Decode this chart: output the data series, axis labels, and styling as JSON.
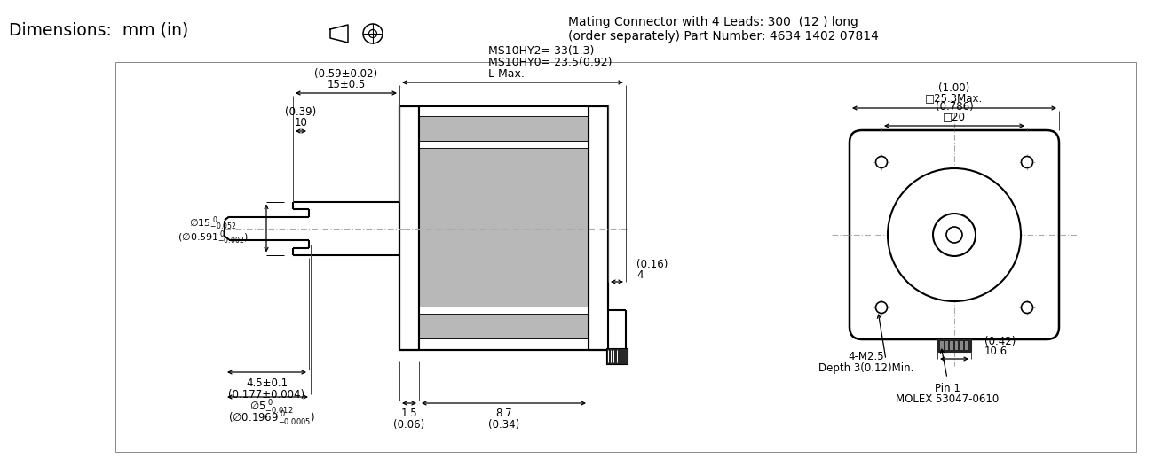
{
  "bg_color": "#ffffff",
  "lc": "#000000",
  "gray": "#b8b8b8",
  "cl_color": "#aaaaaa",
  "header1": "Dimensions:  mm (in)",
  "header2": "Mating Connector with 4 Leads: 300  (12 ) long",
  "header3": "(order separately) Part Number: 4634 1402 07814",
  "dim_15": "15±0.5",
  "dim_15_in": "(0.59±0.02)",
  "dim_10": "10",
  "dim_10_in": "(0.39)",
  "dim_45": "4.5±0.1",
  "dim_45_in": "(0.177±0.004)",
  "dim_L": "L Max.",
  "dim_L2": "MS10HY0= 23.5(0.92)",
  "dim_L3": "MS10HY2= 33(1.3)",
  "dim_87": "8.7",
  "dim_87_in": "(0.34)",
  "dim_15v": "1.5",
  "dim_15v_in": "(0.06)",
  "dim_4": "4",
  "dim_4_in": "(0.16)",
  "dim_sq253": "□25.3Max.",
  "dim_sq253_in": "(1.00)",
  "dim_sq20": "□20",
  "dim_sq20_in": "(0.786)",
  "dim_m25": "4-M2.5",
  "dim_depth": "Depth 3(0.12)Min.",
  "dim_pin1": "Pin 1",
  "dim_molex": "MOLEX 53047-0610",
  "dim_106": "10.6",
  "dim_106_in": "(0.42)"
}
